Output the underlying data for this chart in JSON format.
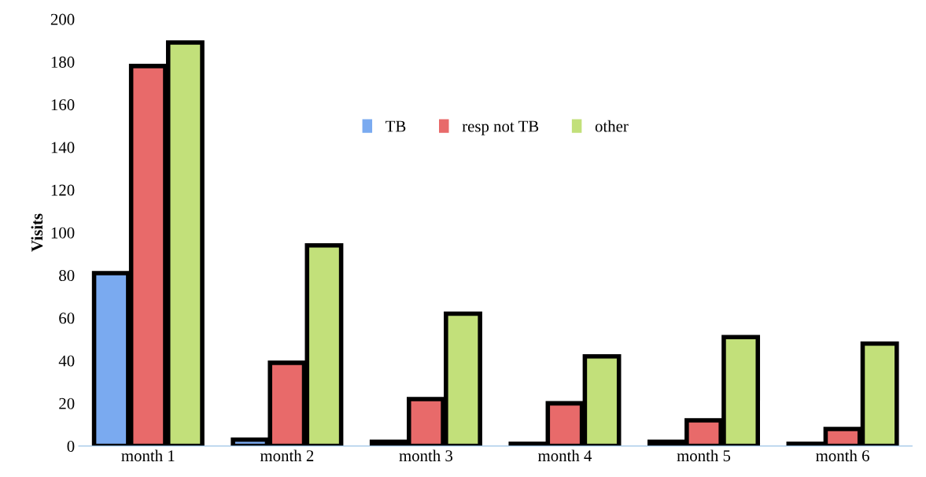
{
  "chart_data": {
    "type": "bar",
    "ylabel": "Visits",
    "categories": [
      "month 1",
      "month 2",
      "month 3",
      "month 4",
      "month 5",
      "month 6"
    ],
    "series": [
      {
        "name": "TB",
        "color": "#7aaaf0",
        "values": [
          81,
          3,
          2,
          1,
          2,
          1
        ]
      },
      {
        "name": "resp not TB",
        "color": "#e86a6a",
        "values": [
          178,
          39,
          22,
          20,
          12,
          8
        ]
      },
      {
        "name": "other",
        "color": "#c2e07a",
        "values": [
          189,
          94,
          62,
          42,
          51,
          48
        ]
      }
    ],
    "ylim": [
      0,
      200
    ],
    "yticks": [
      0,
      20,
      40,
      60,
      80,
      100,
      120,
      140,
      160,
      180,
      200
    ],
    "grid": false,
    "legend": "top"
  }
}
